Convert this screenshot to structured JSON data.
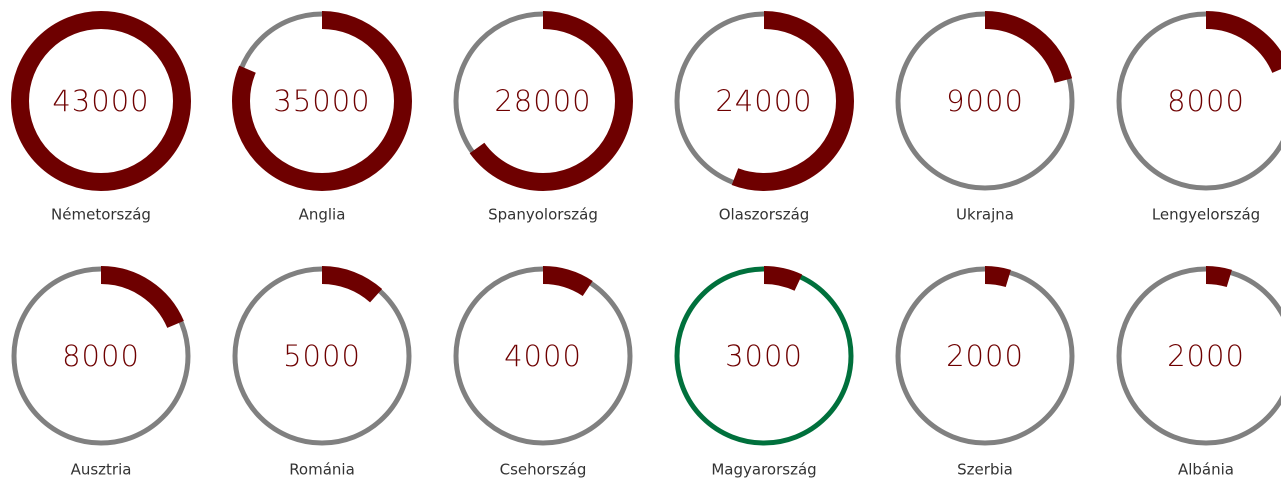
{
  "chart_data": {
    "type": "gauge",
    "categories": [
      "Németország",
      "Anglia",
      "Spanyolország",
      "Olaszország",
      "Ukrajna",
      "Lengyelország",
      "Ausztria",
      "Románia",
      "Csehország",
      "Magyarország",
      "Szerbia",
      "Albánia"
    ],
    "values": [
      43000,
      35000,
      28000,
      24000,
      9000,
      8000,
      8000,
      5000,
      4000,
      3000,
      2000,
      2000
    ],
    "ylim": [
      0,
      43000
    ],
    "color": "#6e0000",
    "track_colors": [
      "#808080",
      "#808080",
      "#808080",
      "#808080",
      "#808080",
      "#808080",
      "#808080",
      "#808080",
      "#808080",
      "#00703c",
      "#808080",
      "#808080"
    ]
  }
}
